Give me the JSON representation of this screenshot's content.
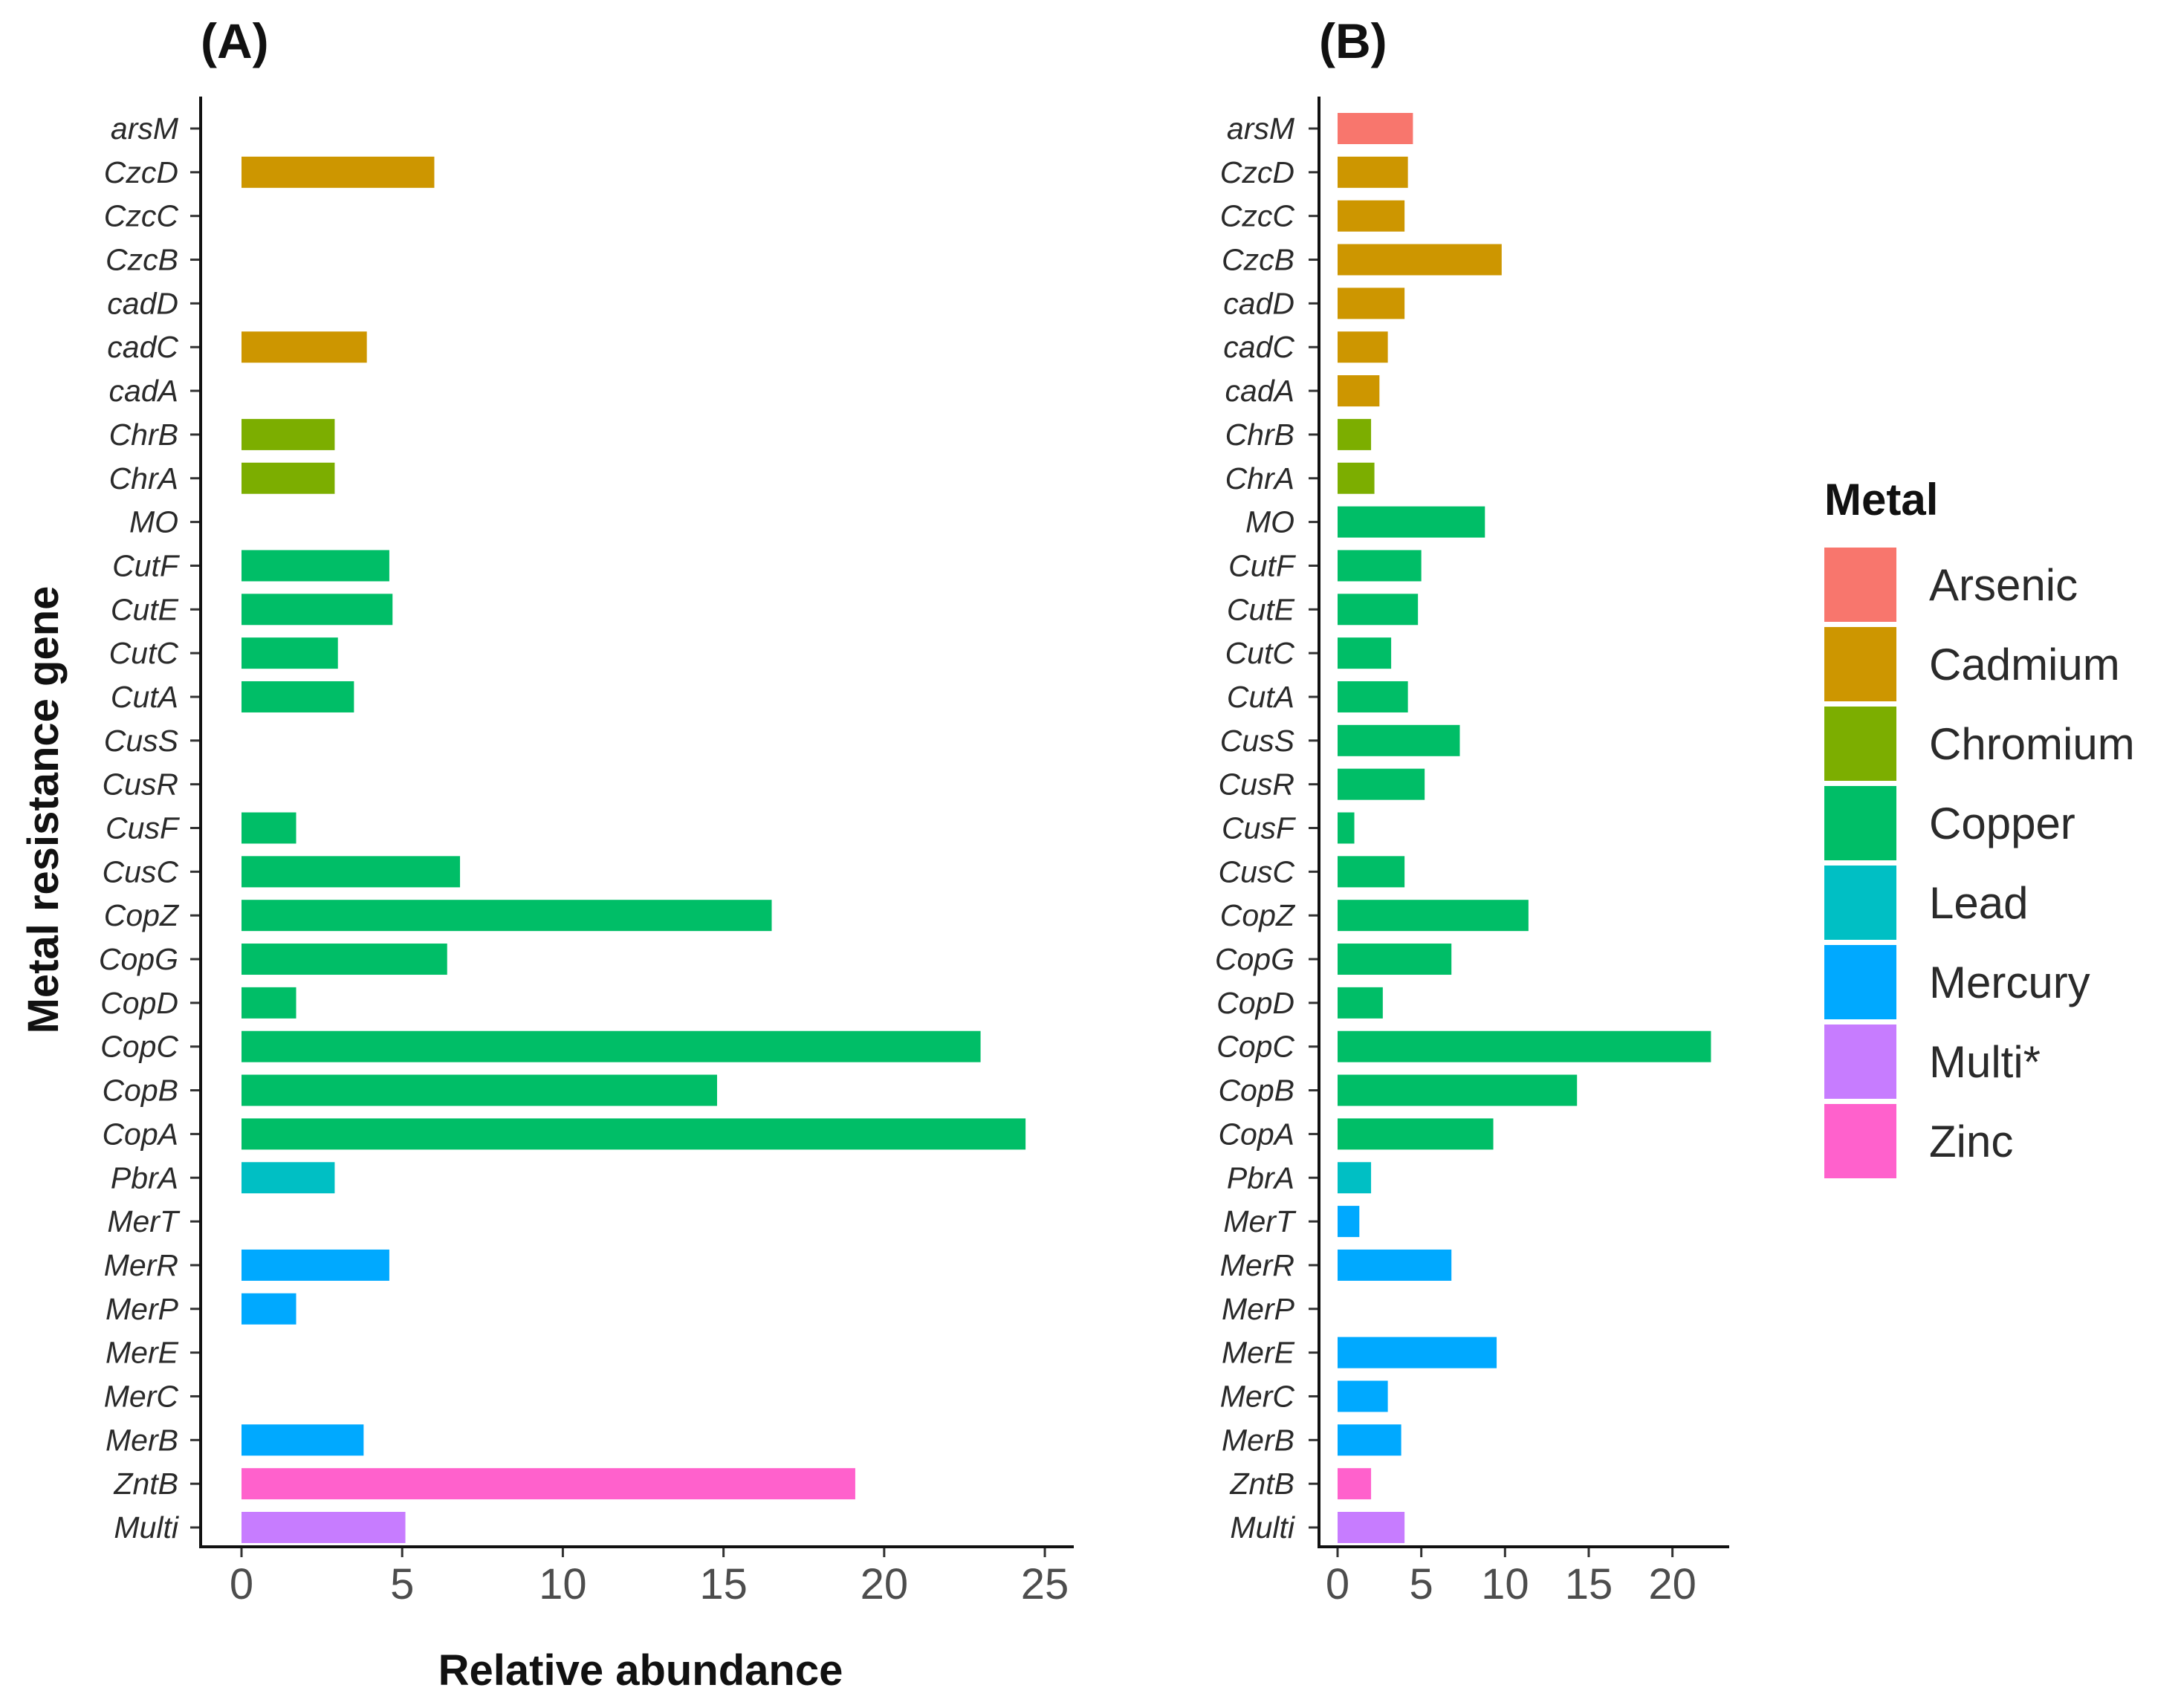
{
  "chart_data": [
    {
      "type": "bar",
      "orientation": "horizontal",
      "panel_label": "(A)",
      "categories": [
        "arsM",
        "CzcD",
        "CzcC",
        "CzcB",
        "cadD",
        "cadC",
        "cadA",
        "ChrB",
        "ChrA",
        "MO",
        "CutF",
        "CutE",
        "CutC",
        "CutA",
        "CusS",
        "CusR",
        "CusF",
        "CusC",
        "CopZ",
        "CopG",
        "CopD",
        "CopC",
        "CopB",
        "CopA",
        "PbrA",
        "MerT",
        "MerR",
        "MerP",
        "MerE",
        "MerC",
        "MerB",
        "ZntB",
        "Multi"
      ],
      "metal": [
        "Arsenic",
        "Cadmium",
        "Cadmium",
        "Cadmium",
        "Cadmium",
        "Cadmium",
        "Cadmium",
        "Chromium",
        "Chromium",
        "Copper",
        "Copper",
        "Copper",
        "Copper",
        "Copper",
        "Copper",
        "Copper",
        "Copper",
        "Copper",
        "Copper",
        "Copper",
        "Copper",
        "Copper",
        "Copper",
        "Copper",
        "Lead",
        "Mercury",
        "Mercury",
        "Mercury",
        "Mercury",
        "Mercury",
        "Mercury",
        "Zinc",
        "Multi*"
      ],
      "values": [
        0,
        6,
        0,
        0,
        0,
        3.9,
        0,
        2.9,
        2.9,
        0,
        4.6,
        4.7,
        3,
        3.5,
        0,
        0,
        1.7,
        6.8,
        16.5,
        6.4,
        1.7,
        23,
        14.8,
        24.4,
        2.9,
        0,
        4.6,
        1.7,
        0,
        0,
        3.8,
        19.1,
        5.1
      ],
      "xlabel": "Relative abundance",
      "ylabel": "Metal resistance gene",
      "xlim": [
        0,
        25.6
      ],
      "xticks": [
        0,
        5,
        10,
        15,
        20,
        25
      ]
    },
    {
      "type": "bar",
      "orientation": "horizontal",
      "panel_label": "(B)",
      "categories": [
        "arsM",
        "CzcD",
        "CzcC",
        "CzcB",
        "cadD",
        "cadC",
        "cadA",
        "ChrB",
        "ChrA",
        "MO",
        "CutF",
        "CutE",
        "CutC",
        "CutA",
        "CusS",
        "CusR",
        "CusF",
        "CusC",
        "CopZ",
        "CopG",
        "CopD",
        "CopC",
        "CopB",
        "CopA",
        "PbrA",
        "MerT",
        "MerR",
        "MerP",
        "MerE",
        "MerC",
        "MerB",
        "ZntB",
        "Multi"
      ],
      "metal": [
        "Arsenic",
        "Cadmium",
        "Cadmium",
        "Cadmium",
        "Cadmium",
        "Cadmium",
        "Cadmium",
        "Chromium",
        "Chromium",
        "Copper",
        "Copper",
        "Copper",
        "Copper",
        "Copper",
        "Copper",
        "Copper",
        "Copper",
        "Copper",
        "Copper",
        "Copper",
        "Copper",
        "Copper",
        "Copper",
        "Copper",
        "Lead",
        "Mercury",
        "Mercury",
        "Mercury",
        "Mercury",
        "Mercury",
        "Mercury",
        "Zinc",
        "Multi*"
      ],
      "values": [
        4.5,
        4.2,
        4,
        9.8,
        4,
        3,
        2.5,
        2,
        2.2,
        8.8,
        5,
        4.8,
        3.2,
        4.2,
        7.3,
        5.2,
        1,
        4,
        11.4,
        6.8,
        2.7,
        22.3,
        14.3,
        9.3,
        2,
        1.3,
        6.8,
        0,
        9.5,
        3,
        3.8,
        2,
        4
      ],
      "xlabel": "",
      "ylabel": "",
      "xlim": [
        0,
        23.3
      ],
      "xticks": [
        0,
        5,
        10,
        15,
        20
      ]
    }
  ],
  "legend": {
    "title": "Metal",
    "items": [
      {
        "label": "Arsenic",
        "color": "#F8766D"
      },
      {
        "label": "Cadmium",
        "color": "#CD9600"
      },
      {
        "label": "Chromium",
        "color": "#7CAE00"
      },
      {
        "label": "Copper",
        "color": "#00BE67"
      },
      {
        "label": "Lead",
        "color": "#00BFC4"
      },
      {
        "label": "Mercury",
        "color": "#00A9FF"
      },
      {
        "label": "Multi*",
        "color": "#C77CFF"
      },
      {
        "label": "Zinc",
        "color": "#FF61CC"
      }
    ]
  }
}
